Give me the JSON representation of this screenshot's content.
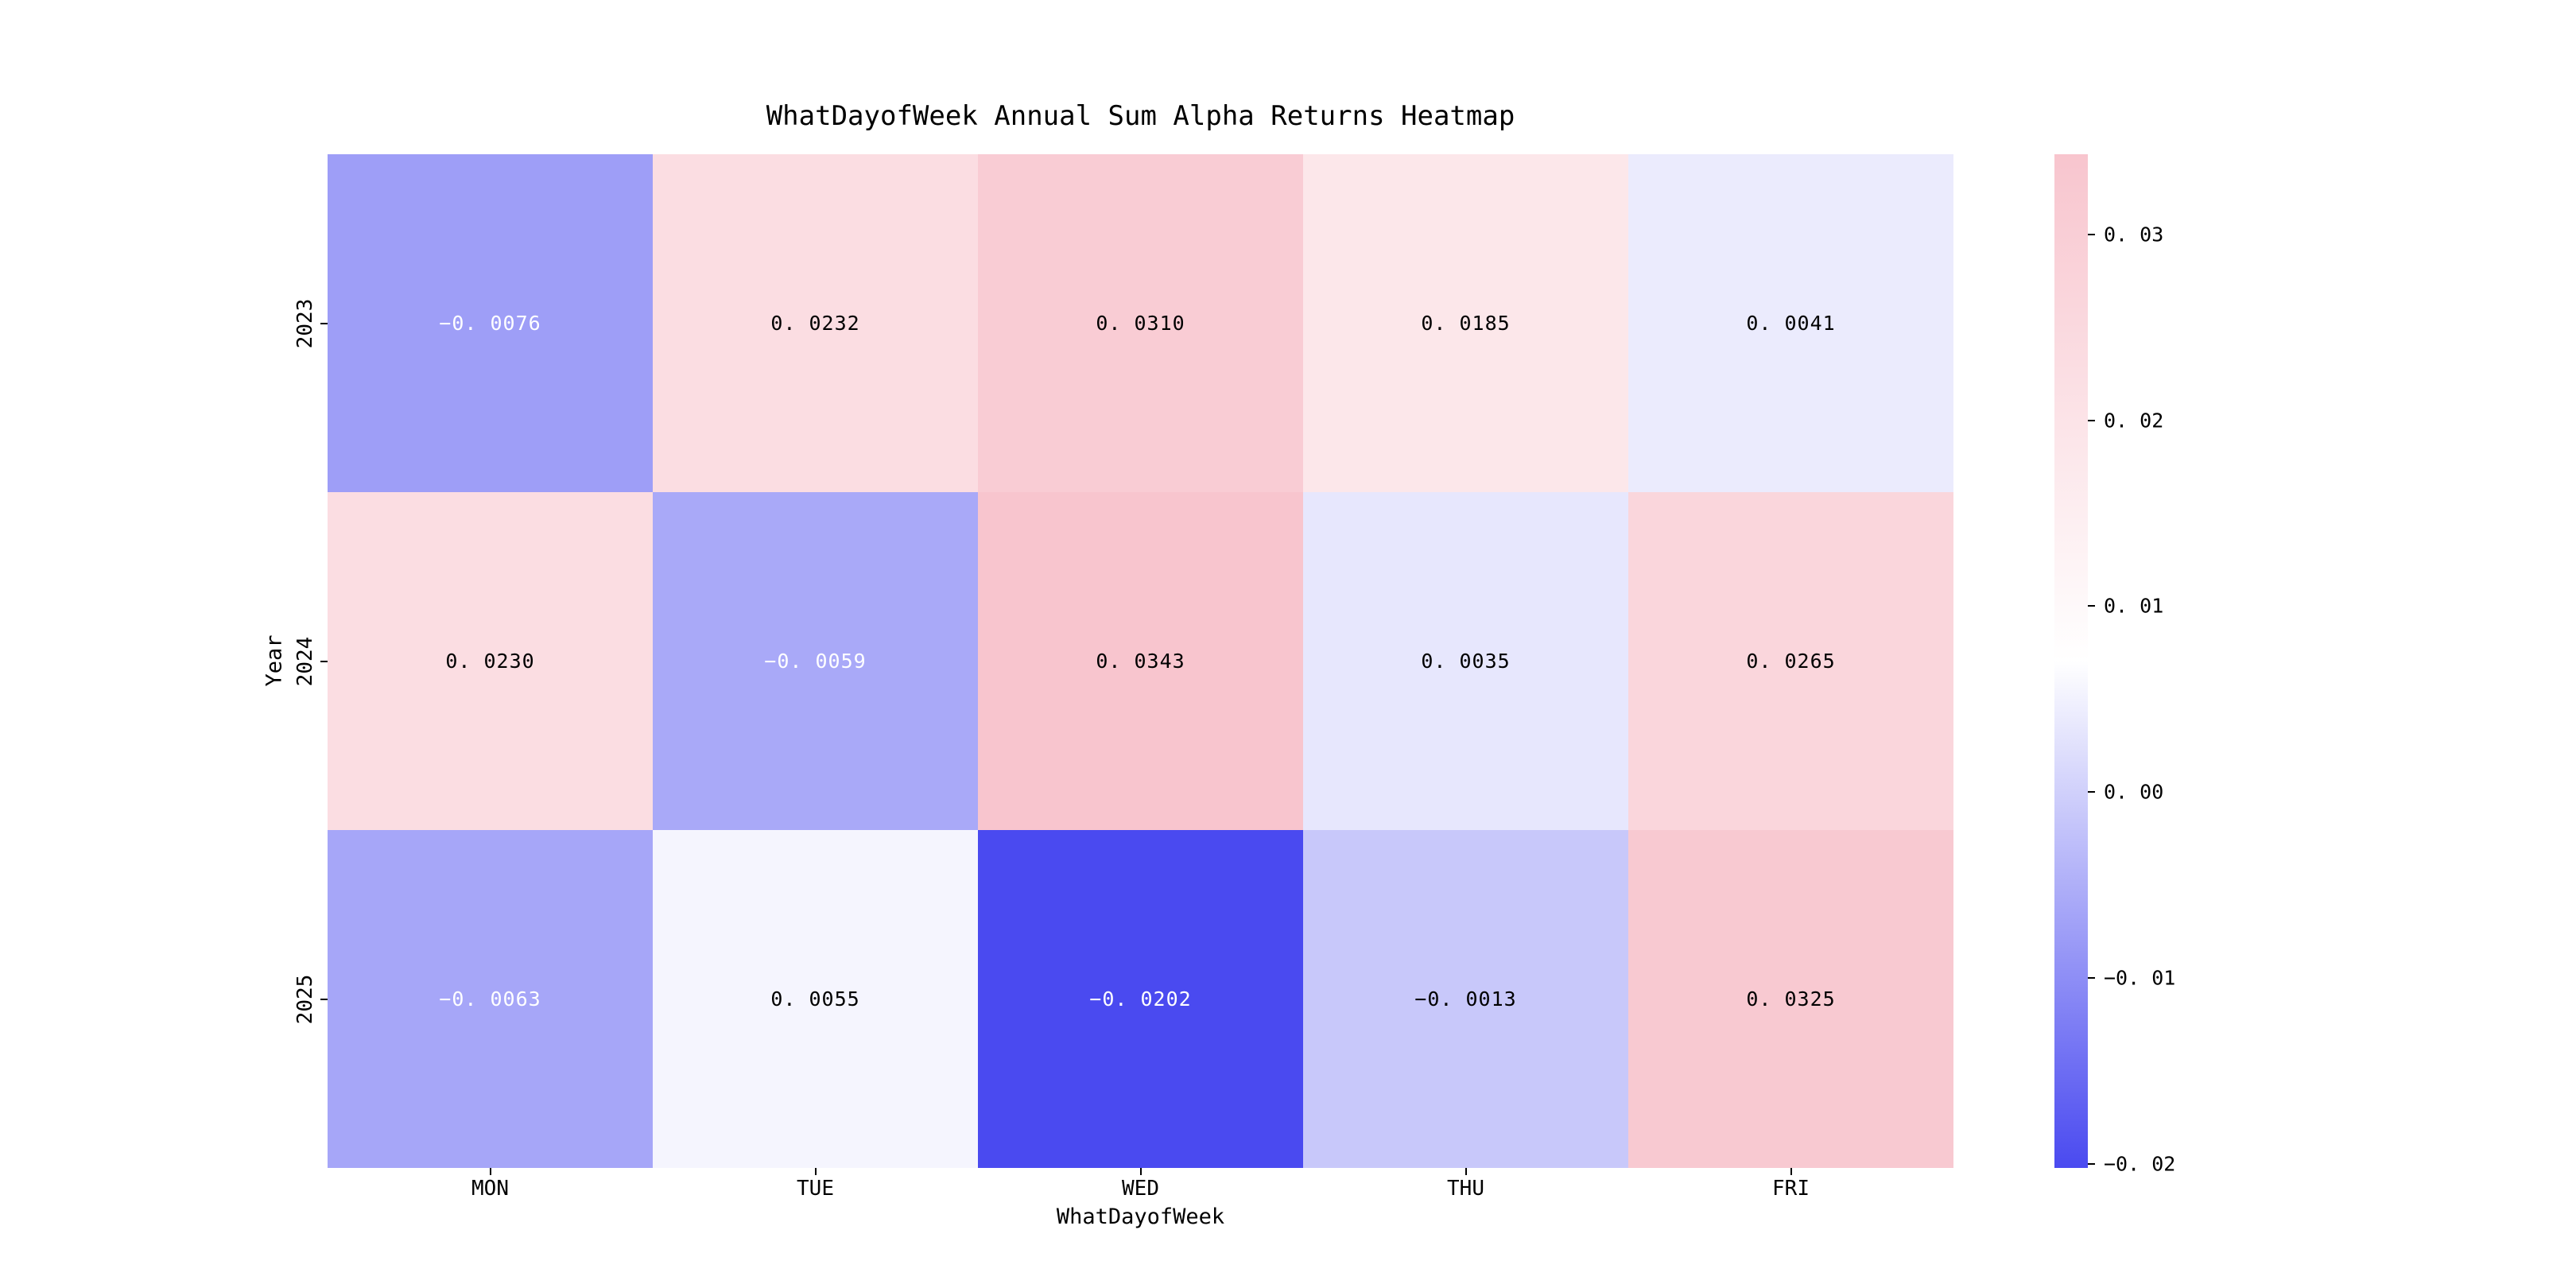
{
  "title": "WhatDayofWeek Annual Sum Alpha Returns Heatmap",
  "chart_data": {
    "type": "heatmap",
    "title": "WhatDayofWeek Annual Sum Alpha Returns Heatmap",
    "xlabel": "WhatDayofWeek",
    "ylabel": "Year",
    "columns": [
      "MON",
      "TUE",
      "WED",
      "THU",
      "FRI"
    ],
    "rows": [
      "2023",
      "2024",
      "2025"
    ],
    "values": [
      [
        -0.0076,
        0.0232,
        0.031,
        0.0185,
        0.0041
      ],
      [
        0.023,
        -0.0059,
        0.0343,
        0.0035,
        0.0265
      ],
      [
        -0.0063,
        0.0055,
        -0.0202,
        -0.0013,
        0.0325
      ]
    ],
    "cell_labels": [
      [
        "−0. 0076",
        "0. 0232",
        "0. 0310",
        "0. 0185",
        "0. 0041"
      ],
      [
        "0. 0230",
        "−0. 0059",
        "0. 0343",
        "0. 0035",
        "0. 0265"
      ],
      [
        "−0. 0063",
        "0. 0055",
        "−0. 0202",
        "−0. 0013",
        "0. 0325"
      ]
    ],
    "colorbar": {
      "vmin": -0.0202,
      "vmax": 0.0343,
      "tick_values": [
        0.03,
        0.02,
        0.01,
        0.0,
        -0.01,
        -0.02
      ],
      "tick_labels": [
        "0. 03",
        "0. 02",
        "0. 01",
        "0. 00",
        "−0. 01",
        "−0. 02"
      ]
    },
    "colors": {
      "negative_end": "#4a4af0",
      "midpoint": "#ffffff",
      "positive_end": "#f8c5ce",
      "annotation_dark": "#000000",
      "annotation_light": "#ffffff"
    },
    "legend_position": "right-colorbar",
    "grid": false
  }
}
